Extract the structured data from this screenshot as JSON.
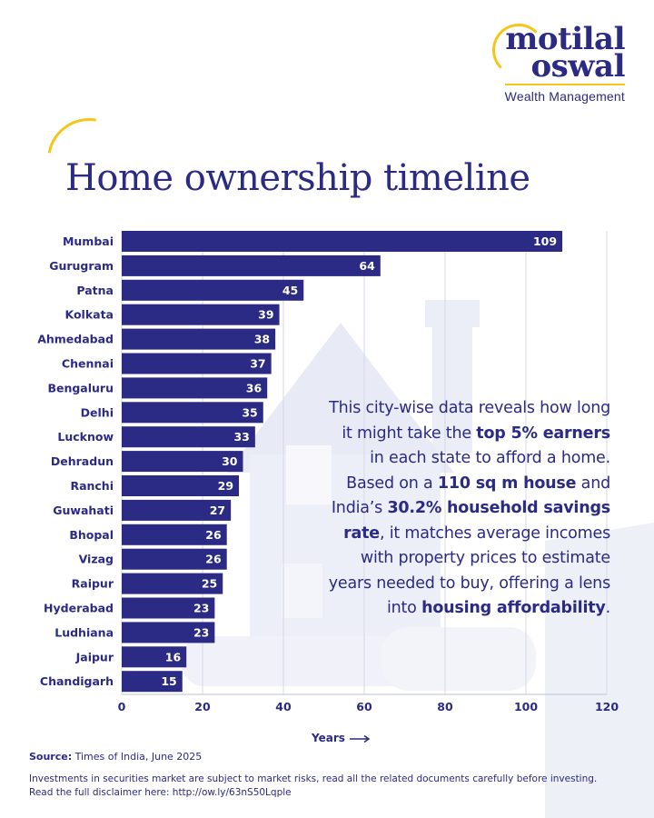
{
  "brand": {
    "line1": "motilal",
    "line2": "oswal",
    "sub": "Wealth Management"
  },
  "title": "Home ownership timeline",
  "chart_data": {
    "type": "bar",
    "orientation": "horizontal",
    "categories": [
      "Mumbai",
      "Gurugram",
      "Patna",
      "Kolkata",
      "Ahmedabad",
      "Chennai",
      "Bengaluru",
      "Delhi",
      "Lucknow",
      "Dehradun",
      "Ranchi",
      "Guwahati",
      "Bhopal",
      "Vizag",
      "Raipur",
      "Hyderabad",
      "Ludhiana",
      "Jaipur",
      "Chandigarh"
    ],
    "values": [
      109,
      64,
      45,
      39,
      38,
      37,
      36,
      35,
      33,
      30,
      29,
      27,
      26,
      26,
      25,
      23,
      23,
      16,
      15
    ],
    "xlabel": "Years",
    "xlim": [
      0,
      120
    ],
    "xticks": [
      0,
      20,
      40,
      60,
      80,
      100,
      120
    ],
    "grid": true,
    "data_labels": true,
    "bar_color": "#2b2a85"
  },
  "description": {
    "p1": "This city-wise data reveals how long it might take the ",
    "b1": "top 5% earners",
    "p2": " in each state to afford a home. Based on a ",
    "b2": "110 sq m house",
    "p3": " and India’s ",
    "b3": "30.2% household savings rate",
    "p4": ", it matches average incomes with property prices to estimate years needed to buy, offering a lens into ",
    "b4": "housing affordability",
    "p5": "."
  },
  "source": {
    "label": "Source:",
    "text": " Times of India, June 2025"
  },
  "disclaimer": {
    "line1": "Investments in securities market are subject to market risks, read all the related documents carefully before investing.",
    "line2": "Read the full disclaimer here:  http://ow.ly/63nS50Lqple"
  },
  "colors": {
    "brand": "#2b2a85",
    "accent": "#f5c518"
  }
}
